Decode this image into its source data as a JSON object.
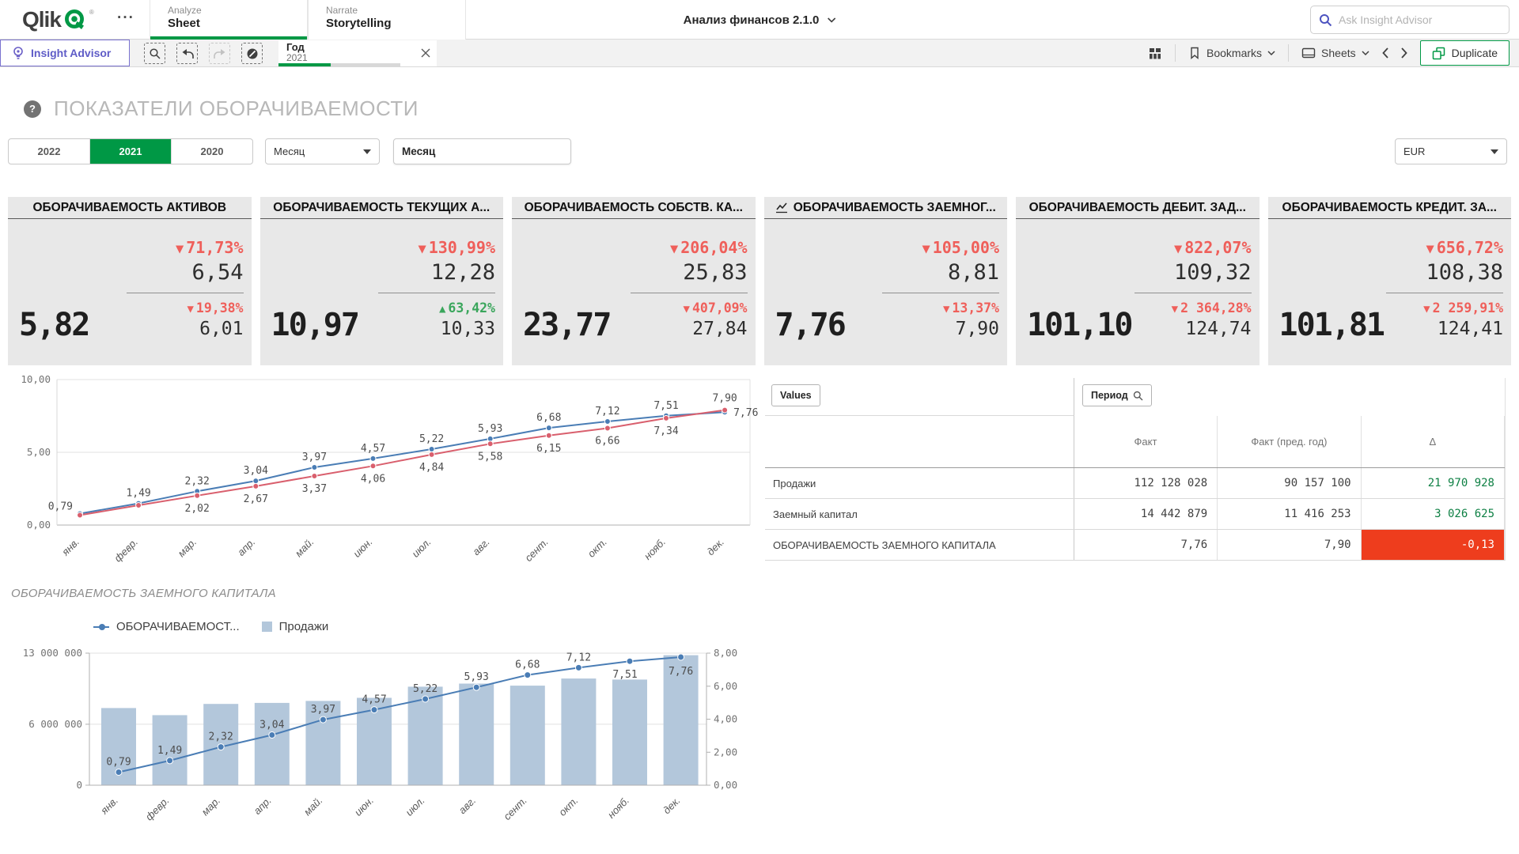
{
  "topbar": {
    "logo_text": "Qlik",
    "logo_reg": "®",
    "more_menu": "···",
    "tabs": [
      {
        "kicker": "Analyze",
        "label": "Sheet"
      },
      {
        "kicker": "Narrate",
        "label": "Storytelling"
      }
    ],
    "app_title": "Анализ финансов 2.1.0",
    "search_placeholder": "Ask Insight Advisor"
  },
  "toolbar": {
    "insight_advisor": "Insight Advisor",
    "filter_chip": {
      "field": "Год",
      "value": "2021"
    },
    "bookmarks_label": "Bookmarks",
    "sheets_label": "Sheets",
    "duplicate_label": "Duplicate"
  },
  "page": {
    "title": "ПОКАЗАТЕЛИ ОБОРАЧИВАЕМОСТИ",
    "section2_title": "ОБОРАЧИВАЕМОСТЬ ЗАЕМНОГО КАПИТАЛА"
  },
  "filters": {
    "years": [
      "2022",
      "2021",
      "2020"
    ],
    "selected_year": "2021",
    "month_dropdown_label": "Месяц",
    "month_listbox_label": "Месяц",
    "currency": "EUR"
  },
  "kpis": [
    {
      "title": "ОБОРАЧИВАЕМОСТЬ АКТИВОВ",
      "value": "5,82",
      "change1": "71,73%",
      "dir1": "down",
      "prev1": "6,54",
      "change2": "19,38%",
      "dir2": "down",
      "prev2": "6,01"
    },
    {
      "title": "ОБОРАЧИВАЕМОСТЬ ТЕКУЩИХ А...",
      "value": "10,97",
      "change1": "130,99%",
      "dir1": "down",
      "prev1": "12,28",
      "change2": "63,42%",
      "dir2": "up",
      "prev2": "10,33"
    },
    {
      "title": "ОБОРАЧИВАЕМОСТЬ СОБСТВ. КА...",
      "value": "23,77",
      "change1": "206,04%",
      "dir1": "down",
      "prev1": "25,83",
      "change2": "407,09%",
      "dir2": "down",
      "prev2": "27,84"
    },
    {
      "title": "ОБОРАЧИВАЕМОСТЬ ЗАЕМНОГ...",
      "value": "7,76",
      "change1": "105,00%",
      "dir1": "down",
      "prev1": "8,81",
      "change2": "13,37%",
      "dir2": "down",
      "prev2": "7,90"
    },
    {
      "title": "ОБОРАЧИВАЕМОСТЬ ДЕБИТ. ЗАД...",
      "value": "101,10",
      "change1": "822,07%",
      "dir1": "down",
      "prev1": "109,32",
      "change2": "2 364,28%",
      "dir2": "down",
      "prev2": "124,74"
    },
    {
      "title": "ОБОРАЧИВАЕМОСТЬ КРЕДИТ. ЗА...",
      "value": "101,81",
      "change1": "656,72%",
      "dir1": "down",
      "prev1": "108,38",
      "change2": "2 259,91%",
      "dir2": "down",
      "prev2": "124,41"
    }
  ],
  "kpi_table": {
    "values_button": "Values",
    "period_button": "Период",
    "columns": [
      "Факт",
      "Факт (пред. год)",
      "Δ"
    ],
    "rows": [
      {
        "label": "Продажи",
        "fact": "112 128 028",
        "prev": "90 157 100",
        "delta": "21 970 928",
        "delta_state": "positive"
      },
      {
        "label": "Заемный капитал",
        "fact": "14 442 879",
        "prev": "11 416 253",
        "delta": "3 026 625",
        "delta_state": "positive"
      },
      {
        "label": "ОБОРАЧИВАЕМОСТЬ ЗАЕМНОГО КАПИТАЛА",
        "fact": "7,76",
        "prev": "7,90",
        "delta": "-0,13",
        "delta_state": "negative"
      }
    ]
  },
  "chart_data": [
    {
      "type": "line",
      "categories": [
        "янв.",
        "февр.",
        "мар.",
        "апр.",
        "май.",
        "июн.",
        "июл.",
        "авг.",
        "сент.",
        "окт.",
        "нояб.",
        "дек."
      ],
      "ylim": [
        0,
        10
      ],
      "yticks": [
        {
          "v": 0,
          "label": "0,00"
        },
        {
          "v": 5,
          "label": "5,00"
        },
        {
          "v": 10,
          "label": "10,00"
        }
      ],
      "grid": true,
      "series": [
        {
          "color": "#4a7db5",
          "values": [
            0.79,
            1.49,
            2.32,
            3.04,
            3.97,
            4.57,
            5.22,
            5.93,
            6.68,
            7.12,
            7.51,
            7.76
          ],
          "labels": [
            "0,79",
            "1,49",
            "2,32",
            "3,04",
            "3,97",
            "4,57",
            "5,22",
            "5,93",
            "6,68",
            "7,12",
            "7,51",
            "7,76"
          ]
        },
        {
          "color": "#d95f6d",
          "values": [
            0.68,
            1.36,
            2.02,
            2.67,
            3.37,
            4.06,
            4.84,
            5.58,
            6.15,
            6.66,
            7.34,
            7.9
          ],
          "labels": [
            "",
            "",
            "2,02",
            "2,67",
            "3,37",
            "4,06",
            "4,84",
            "5,58",
            "6,15",
            "6,66",
            "7,34",
            "7,90"
          ]
        }
      ]
    },
    {
      "type": "combo",
      "legend": [
        {
          "label": "ОБОРАЧИВАЕМОСТ...",
          "marker": "line",
          "color": "#4a7db5"
        },
        {
          "label": "Продажи",
          "marker": "square",
          "color": "#b3c7db"
        }
      ],
      "categories": [
        "янв.",
        "февр.",
        "мар.",
        "апр.",
        "май.",
        "июн.",
        "июл.",
        "авг.",
        "сент.",
        "окт.",
        "нояб.",
        "дек."
      ],
      "bars": {
        "name": "Продажи",
        "color": "#b3c7db",
        "values": [
          7600000,
          6900000,
          8000000,
          8100000,
          8300000,
          8600000,
          9700000,
          10000000,
          9800000,
          10500000,
          10400000,
          12800000
        ]
      },
      "line": {
        "color": "#4a7db5",
        "values": [
          0.79,
          1.49,
          2.32,
          3.04,
          3.97,
          4.57,
          5.22,
          5.93,
          6.68,
          7.12,
          7.51,
          7.76
        ],
        "labels": [
          "0,79",
          "1,49",
          "2,32",
          "3,04",
          "3,97",
          "4,57",
          "5,22",
          "5,93",
          "6,68",
          "7,12",
          "7,51",
          "7,76"
        ]
      },
      "left_axis": {
        "lim": [
          0,
          13000000
        ],
        "ticks": [
          {
            "v": 0,
            "label": "0"
          },
          {
            "v": 6000000,
            "label": "6 000 000"
          },
          {
            "v": 13000000,
            "label": "13 000 000"
          }
        ]
      },
      "right_axis": {
        "lim": [
          0,
          8
        ],
        "ticks": [
          {
            "v": 0,
            "label": "0,00"
          },
          {
            "v": 2,
            "label": "2,00"
          },
          {
            "v": 4,
            "label": "4,00"
          },
          {
            "v": 6,
            "label": "6,00"
          },
          {
            "v": 8,
            "label": "8,00"
          }
        ]
      }
    }
  ]
}
